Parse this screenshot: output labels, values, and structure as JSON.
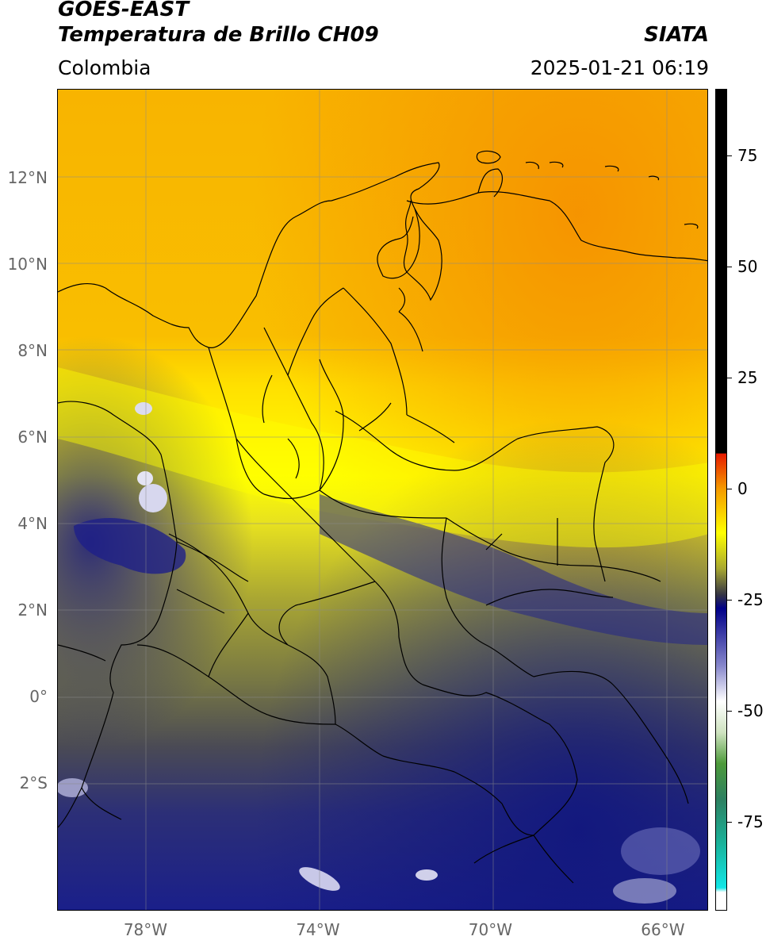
{
  "header": {
    "satellite": "GOES-EAST",
    "product": "Temperatura de Brillo CH09",
    "brand": "SIATA",
    "region": "Colombia",
    "timestamp": "2025-01-21 06:19"
  },
  "map": {
    "lat_labels": [
      {
        "text": "12°N",
        "lat": 12
      },
      {
        "text": "10°N",
        "lat": 10
      },
      {
        "text": "8°N",
        "lat": 8
      },
      {
        "text": "6°N",
        "lat": 6
      },
      {
        "text": "4°N",
        "lat": 4
      },
      {
        "text": "2°N",
        "lat": 2
      },
      {
        "text": "0°",
        "lat": 0
      },
      {
        "text": "2°S",
        "lat": -2
      }
    ],
    "lon_labels": [
      {
        "text": "78°W",
        "lon": -78
      },
      {
        "text": "74°W",
        "lon": -74
      },
      {
        "text": "70°W",
        "lon": -70
      },
      {
        "text": "66°W",
        "lon": -66
      }
    ]
  },
  "colorbar": {
    "ticks": [
      {
        "text": "75",
        "value": 75
      },
      {
        "text": "50",
        "value": 50
      },
      {
        "text": "25",
        "value": 25
      },
      {
        "text": "0",
        "value": 0
      },
      {
        "text": "-25",
        "value": -25
      },
      {
        "text": "-50",
        "value": -50
      },
      {
        "text": "-75",
        "value": -75
      }
    ],
    "stops": [
      {
        "value": 90,
        "color": "#000000"
      },
      {
        "value": 8,
        "color": "#000000"
      },
      {
        "value": 7.9,
        "color": "#e61a00"
      },
      {
        "value": 0,
        "color": "#f59a00"
      },
      {
        "value": -10,
        "color": "#ffff00"
      },
      {
        "value": -18,
        "color": "#a8a830"
      },
      {
        "value": -24,
        "color": "#333344"
      },
      {
        "value": -27,
        "color": "#000088"
      },
      {
        "value": -40,
        "color": "#8888cc"
      },
      {
        "value": -48,
        "color": "#ffffff"
      },
      {
        "value": -55,
        "color": "#cfe3c0"
      },
      {
        "value": -62,
        "color": "#4d9a3a"
      },
      {
        "value": -70,
        "color": "#2d8060"
      },
      {
        "value": -80,
        "color": "#1ab29a"
      },
      {
        "value": -90,
        "color": "#11e6e6"
      },
      {
        "value": -91,
        "color": "#ffffff"
      },
      {
        "value": -95,
        "color": "#ffffff"
      }
    ]
  }
}
